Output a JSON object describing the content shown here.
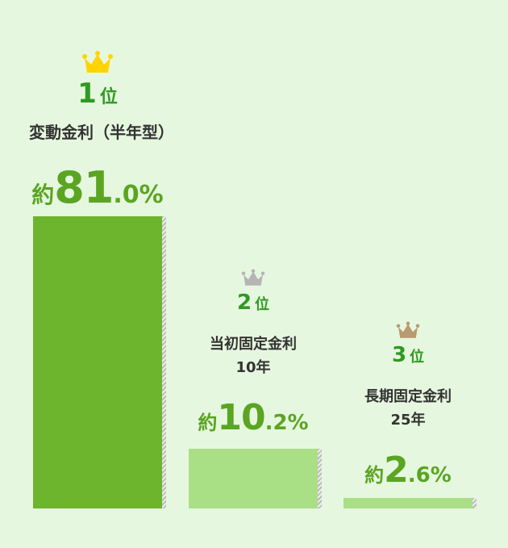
{
  "chart_data": {
    "type": "bar",
    "categories": [
      "変動金利（半年型）",
      "当初固定金利\n10年",
      "長期固定金利\n25年"
    ],
    "values": [
      81.0,
      10.2,
      2.6
    ],
    "unit": "%",
    "ranks": [
      "1",
      "2",
      "3"
    ],
    "rank_suffix": "位",
    "prefix": "約",
    "items": [
      {
        "rank": "1",
        "rank_suffix": "位",
        "label_lines": [
          "変動金利（半年型）"
        ],
        "prefix": "約",
        "int": "81",
        "dec": ".0%",
        "value": 81.0,
        "crown_color": "#ffd400",
        "bar_color": "#6cb52c"
      },
      {
        "rank": "2",
        "rank_suffix": "位",
        "label_lines": [
          "当初固定金利",
          "10年"
        ],
        "prefix": "約",
        "int": "10",
        "dec": ".2%",
        "value": 10.2,
        "crown_color": "#b5b5b5",
        "bar_color": "#a9df85"
      },
      {
        "rank": "3",
        "rank_suffix": "位",
        "label_lines": [
          "長期固定金利",
          "25年"
        ],
        "prefix": "約",
        "int": "2",
        "dec": ".6%",
        "value": 2.6,
        "crown_color": "#b89a6e",
        "bar_color": "#a9df85"
      }
    ],
    "icons": [
      "crown-icon"
    ],
    "colors": {
      "background": "#e6f7df",
      "rank_text": "#2f9a23",
      "percent_text": "#5aa521"
    }
  }
}
